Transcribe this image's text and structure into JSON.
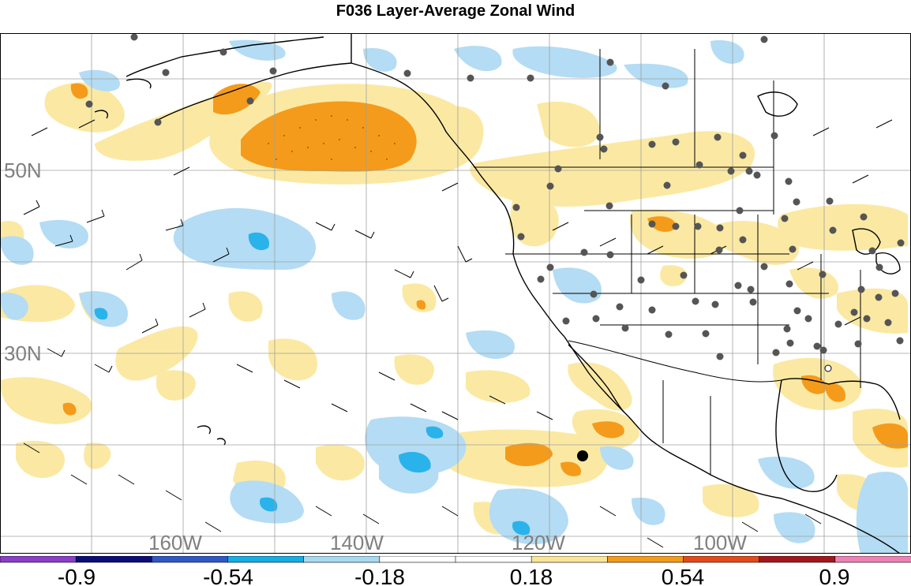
{
  "title": "F036 Layer-Average Zonal Wind",
  "map": {
    "lat_labels": [
      "50N",
      "30N"
    ],
    "lon_labels": [
      "160W",
      "140W",
      "120W",
      "100W"
    ],
    "colors": {
      "light_yellow": "#fbe9a3",
      "orange": "#f49b1b",
      "light_blue": "#b4dcf4",
      "cyan": "#29b3ea",
      "grid": "#a0a0a0",
      "coast": "#000000",
      "station": "#555555"
    }
  },
  "colorbar": {
    "tick_labels": [
      "-0.9",
      "-0.54",
      "-0.18",
      "0.18",
      "0.54",
      "0.9"
    ],
    "colors": [
      "#8a3ec9",
      "#0b0b7a",
      "#2e58c7",
      "#16aee6",
      "#a8d9f3",
      "#ffffff",
      "#ffffff",
      "#fbe697",
      "#f49b1b",
      "#e44a1a",
      "#a3171c",
      "#ee82b7"
    ]
  }
}
